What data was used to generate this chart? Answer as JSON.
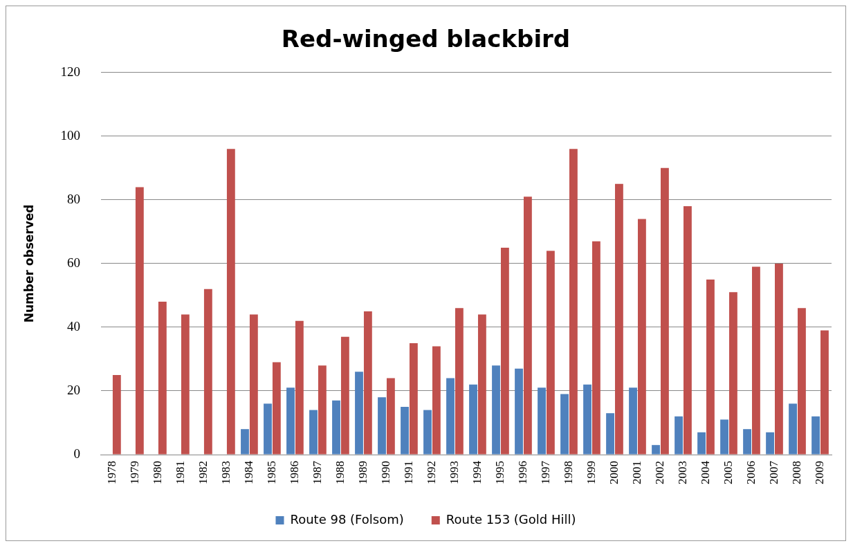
{
  "chart_data": {
    "type": "bar",
    "title": "Red-winged blackbird",
    "ylabel": "Number observed",
    "categories": [
      "1978",
      "1979",
      "1980",
      "1981",
      "1982",
      "1983",
      "1984",
      "1985",
      "1986",
      "1987",
      "1988",
      "1989",
      "1990",
      "1991",
      "1992",
      "1993",
      "1994",
      "1995",
      "1996",
      "1997",
      "1998",
      "1999",
      "2000",
      "2001",
      "2002",
      "2003",
      "2004",
      "2005",
      "2006",
      "2007",
      "2008",
      "2009"
    ],
    "series": [
      {
        "name": "Route 98 (Folsom)",
        "color": "#4f81bd",
        "values": [
          null,
          null,
          null,
          null,
          null,
          null,
          8,
          16,
          21,
          14,
          17,
          26,
          18,
          15,
          14,
          24,
          22,
          28,
          27,
          21,
          19,
          22,
          13,
          21,
          3,
          12,
          7,
          11,
          8,
          7,
          16,
          12
        ]
      },
      {
        "name": "Route 153 (Gold Hill)",
        "color": "#c0504d",
        "values": [
          25,
          84,
          48,
          44,
          52,
          96,
          44,
          29,
          42,
          28,
          37,
          45,
          24,
          35,
          34,
          46,
          44,
          65,
          81,
          64,
          96,
          67,
          85,
          74,
          90,
          78,
          55,
          51,
          59,
          60,
          46,
          39
        ]
      }
    ],
    "ylim": [
      0,
      120
    ],
    "yticks": [
      0,
      20,
      40,
      60,
      80,
      100,
      120
    ],
    "grid": "y",
    "legend": "bottom"
  }
}
